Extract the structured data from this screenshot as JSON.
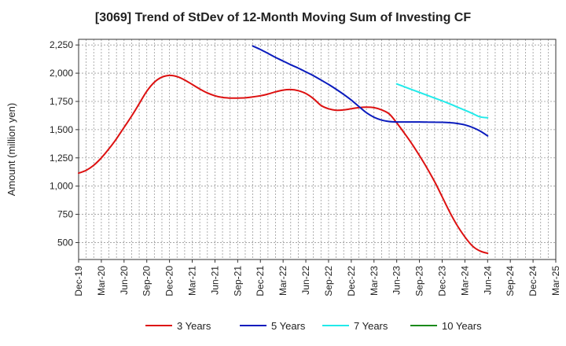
{
  "chart_data": {
    "type": "line",
    "title": "[3069]  Trend of StDev of 12-Month Moving Sum of Investing CF",
    "xlabel": "",
    "ylabel": "Amount (million yen)",
    "ylim": [
      350,
      2300
    ],
    "yticks": [
      500,
      750,
      1000,
      1250,
      1500,
      1750,
      2000,
      2250
    ],
    "ytick_labels": [
      "500",
      "750",
      "1,000",
      "1,250",
      "1,500",
      "1,750",
      "2,000",
      "2,250"
    ],
    "x_range": [
      "Dec-19",
      "Mar-25"
    ],
    "xtick_labels": [
      "Dec-19",
      "Mar-20",
      "Jun-20",
      "Sep-20",
      "Dec-20",
      "Mar-21",
      "Jun-21",
      "Sep-21",
      "Dec-21",
      "Mar-22",
      "Jun-22",
      "Sep-22",
      "Dec-22",
      "Mar-23",
      "Jun-23",
      "Sep-23",
      "Dec-23",
      "Mar-24",
      "Jun-24",
      "Sep-24",
      "Dec-24",
      "Mar-25"
    ],
    "grid": true,
    "legend_position": "bottom",
    "series": [
      {
        "name": "3 Years",
        "color": "#dd1111",
        "points": [
          [
            "Dec-19",
            1115
          ],
          [
            "Jan-20",
            1140
          ],
          [
            "Feb-20",
            1185
          ],
          [
            "Mar-20",
            1250
          ],
          [
            "Apr-20",
            1330
          ],
          [
            "May-20",
            1420
          ],
          [
            "Jun-20",
            1520
          ],
          [
            "Jul-20",
            1620
          ],
          [
            "Aug-20",
            1730
          ],
          [
            "Sep-20",
            1840
          ],
          [
            "Oct-20",
            1920
          ],
          [
            "Nov-20",
            1965
          ],
          [
            "Dec-20",
            1980
          ],
          [
            "Jan-21",
            1970
          ],
          [
            "Feb-21",
            1940
          ],
          [
            "Mar-21",
            1900
          ],
          [
            "Apr-21",
            1860
          ],
          [
            "May-21",
            1825
          ],
          [
            "Jun-21",
            1800
          ],
          [
            "Jul-21",
            1785
          ],
          [
            "Aug-21",
            1780
          ],
          [
            "Sep-21",
            1780
          ],
          [
            "Oct-21",
            1782
          ],
          [
            "Nov-21",
            1790
          ],
          [
            "Dec-21",
            1800
          ],
          [
            "Jan-22",
            1815
          ],
          [
            "Feb-22",
            1835
          ],
          [
            "Mar-22",
            1850
          ],
          [
            "Apr-22",
            1855
          ],
          [
            "May-22",
            1845
          ],
          [
            "Jun-22",
            1820
          ],
          [
            "Jul-22",
            1775
          ],
          [
            "Aug-22",
            1715
          ],
          [
            "Sep-22",
            1685
          ],
          [
            "Oct-22",
            1672
          ],
          [
            "Nov-22",
            1675
          ],
          [
            "Dec-22",
            1685
          ],
          [
            "Jan-23",
            1695
          ],
          [
            "Feb-23",
            1700
          ],
          [
            "Mar-23",
            1695
          ],
          [
            "Apr-23",
            1675
          ],
          [
            "May-23",
            1640
          ],
          [
            "Jun-23",
            1560
          ],
          [
            "Jul-23",
            1470
          ],
          [
            "Aug-23",
            1375
          ],
          [
            "Sep-23",
            1270
          ],
          [
            "Oct-23",
            1160
          ],
          [
            "Nov-23",
            1040
          ],
          [
            "Dec-23",
            905
          ],
          [
            "Jan-24",
            770
          ],
          [
            "Feb-24",
            650
          ],
          [
            "Mar-24",
            550
          ],
          [
            "Apr-24",
            470
          ],
          [
            "May-24",
            425
          ],
          [
            "Jun-24",
            405
          ]
        ]
      },
      {
        "name": "5 Years",
        "color": "#0a1bbd",
        "points": [
          [
            "Nov-21",
            2240
          ],
          [
            "Dec-21",
            2210
          ],
          [
            "Jan-22",
            2175
          ],
          [
            "Feb-22",
            2140
          ],
          [
            "Mar-22",
            2108
          ],
          [
            "Apr-22",
            2075
          ],
          [
            "May-22",
            2045
          ],
          [
            "Jun-22",
            2012
          ],
          [
            "Jul-22",
            1978
          ],
          [
            "Aug-22",
            1940
          ],
          [
            "Sep-22",
            1900
          ],
          [
            "Oct-22",
            1858
          ],
          [
            "Nov-22",
            1812
          ],
          [
            "Dec-22",
            1762
          ],
          [
            "Jan-23",
            1705
          ],
          [
            "Feb-23",
            1650
          ],
          [
            "Mar-23",
            1610
          ],
          [
            "Apr-23",
            1585
          ],
          [
            "May-23",
            1572
          ],
          [
            "Jun-23",
            1568
          ],
          [
            "Jul-23",
            1568
          ],
          [
            "Aug-23",
            1568
          ],
          [
            "Sep-23",
            1568
          ],
          [
            "Oct-23",
            1567
          ],
          [
            "Nov-23",
            1566
          ],
          [
            "Dec-23",
            1565
          ],
          [
            "Jan-24",
            1562
          ],
          [
            "Feb-24",
            1555
          ],
          [
            "Mar-24",
            1542
          ],
          [
            "Apr-24",
            1520
          ],
          [
            "May-24",
            1488
          ],
          [
            "Jun-24",
            1445
          ]
        ]
      },
      {
        "name": "7 Years",
        "color": "#22eaea",
        "points": [
          [
            "Jun-23",
            1905
          ],
          [
            "Jul-23",
            1880
          ],
          [
            "Aug-23",
            1855
          ],
          [
            "Sep-23",
            1830
          ],
          [
            "Oct-23",
            1805
          ],
          [
            "Nov-23",
            1780
          ],
          [
            "Dec-23",
            1755
          ],
          [
            "Jan-24",
            1728
          ],
          [
            "Feb-24",
            1700
          ],
          [
            "Mar-24",
            1672
          ],
          [
            "Apr-24",
            1643
          ],
          [
            "May-24",
            1613
          ],
          [
            "Jun-24",
            1605
          ]
        ]
      },
      {
        "name": "10 Years",
        "color": "#1a8a1a",
        "points": []
      }
    ]
  }
}
